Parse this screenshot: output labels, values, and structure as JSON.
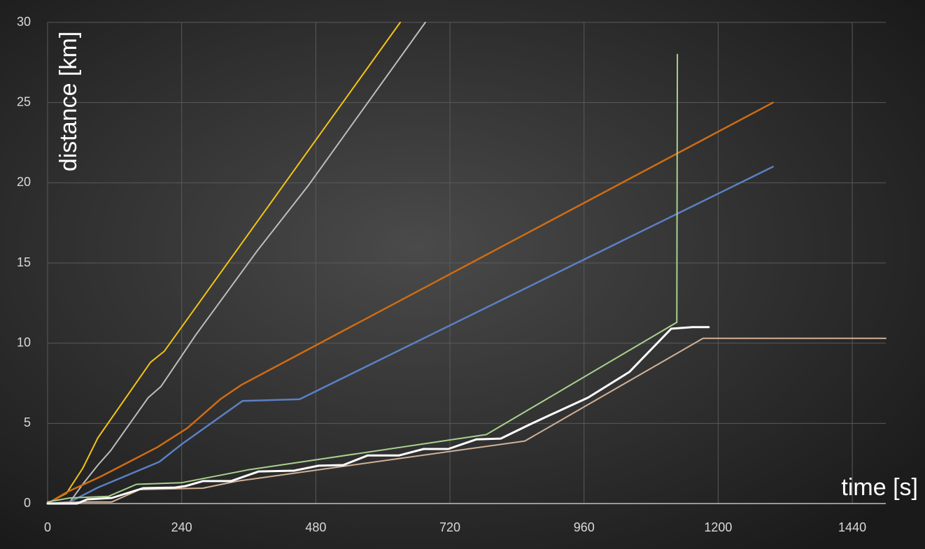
{
  "chart_data": {
    "type": "line",
    "x_label": "time [s]",
    "y_label": "distance [km]",
    "xlim": [
      0,
      1500
    ],
    "xticks": [
      0,
      240,
      480,
      720,
      960,
      1200,
      1440
    ],
    "ylim": [
      0,
      30
    ],
    "yticks": [
      0,
      5,
      10,
      15,
      20,
      25,
      30
    ],
    "grid": true,
    "series": [
      {
        "color": "#f2c414",
        "width": 2,
        "x": [
          0,
          34,
          63,
          90,
          184,
          209,
          631
        ],
        "values": [
          0,
          0.65,
          2.2,
          4.1,
          8.8,
          9.5,
          30
        ]
      },
      {
        "color": "#bdbdbd",
        "width": 2,
        "x": [
          0,
          40,
          65,
          90,
          113,
          180,
          203,
          265,
          376,
          466,
          676
        ],
        "values": [
          0,
          0.1,
          1.3,
          2.4,
          3.3,
          6.6,
          7.3,
          10.5,
          15.8,
          19.8,
          30
        ]
      },
      {
        "color": "#d06c12",
        "width": 2.5,
        "x": [
          0,
          34,
          96,
          146,
          196,
          250,
          309,
          347,
          1298
        ],
        "values": [
          0,
          0.7,
          1.7,
          2.6,
          3.5,
          4.7,
          6.5,
          7.4,
          25
        ]
      },
      {
        "color": "#5b80c4",
        "width": 2.5,
        "x": [
          0,
          40,
          90,
          200,
          240,
          349,
          451,
          1298
        ],
        "values": [
          0,
          0.1,
          1.0,
          2.6,
          3.7,
          6.4,
          6.5,
          21
        ]
      },
      {
        "color": "#a9d18e",
        "width": 2,
        "x": [
          0,
          40,
          109,
          159,
          240,
          359,
          785,
          1126,
          1127
        ],
        "values": [
          0.1,
          0.35,
          0.45,
          1.2,
          1.3,
          2.1,
          4.3,
          11.3,
          28
        ]
      },
      {
        "color": "#d2b196",
        "width": 2,
        "x": [
          0,
          59,
          115,
          165,
          278,
          340,
          854,
          1173,
          1500
        ],
        "values": [
          0,
          0.1,
          0.1,
          0.87,
          0.96,
          1.4,
          3.9,
          10.3,
          10.3
        ]
      },
      {
        "color": "#ffffff",
        "width": 3,
        "x": [
          0,
          53,
          71,
          115,
          171,
          228,
          247,
          278,
          328,
          378,
          441,
          485,
          529,
          573,
          629,
          673,
          717,
          767,
          811,
          861,
          898,
          967,
          1041,
          1116,
          1154,
          1183
        ],
        "values": [
          0,
          0,
          0.26,
          0.35,
          0.96,
          1.0,
          1.09,
          1.4,
          1.4,
          2.0,
          2.05,
          2.36,
          2.4,
          3.0,
          3.0,
          3.4,
          3.4,
          4.0,
          4.05,
          4.9,
          5.5,
          6.6,
          8.2,
          10.9,
          11.0,
          11.0
        ]
      }
    ]
  }
}
